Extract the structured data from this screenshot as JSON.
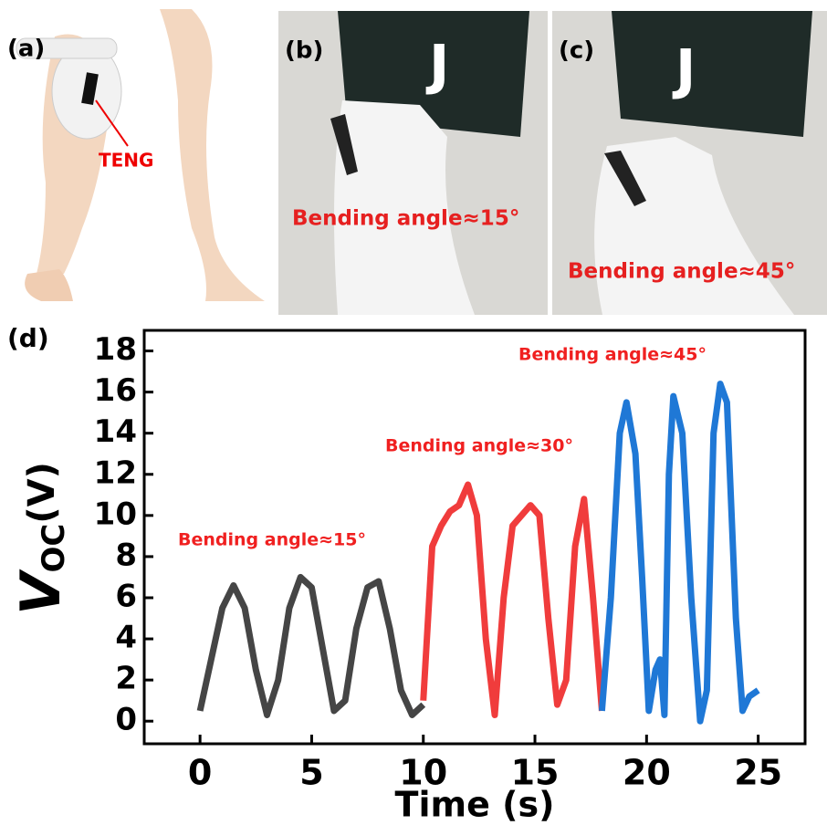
{
  "panels": {
    "a": {
      "label": "(a)",
      "teng": "TENG"
    },
    "b": {
      "label": "(b)",
      "caption": "Bending angle≈15°"
    },
    "c": {
      "label": "(c)",
      "caption": "Bending angle≈45°"
    }
  },
  "chart_data": {
    "type": "line",
    "panel_label": "(d)",
    "x_label": "Time (s)",
    "y_label": "V",
    "y_label_sub": "OC",
    "y_label_unit": "(V)",
    "xlim": [
      -2.5,
      27.1
    ],
    "ylim": [
      -1.1,
      19
    ],
    "xticks": [
      0,
      5,
      10,
      15,
      20,
      25
    ],
    "yticks": [
      0,
      2,
      4,
      6,
      8,
      10,
      12,
      14,
      16,
      18
    ],
    "annotations": [
      "Bending angle≈15°",
      "Bending angle≈30°",
      "Bending angle≈45°"
    ],
    "series": [
      {
        "color": "#454545",
        "x": [
          0,
          0.5,
          1,
          1.5,
          2,
          2.5,
          3,
          3.5,
          4,
          4.5,
          5,
          5.5,
          6,
          6.5,
          7,
          7.5,
          8,
          8.5,
          9,
          9.5,
          10
        ],
        "values": [
          0.5,
          3.0,
          5.5,
          6.6,
          5.5,
          2.5,
          0.3,
          2.0,
          5.5,
          7.0,
          6.5,
          3.5,
          0.5,
          1.0,
          4.5,
          6.5,
          6.8,
          4.5,
          1.5,
          0.3,
          0.8
        ]
      },
      {
        "color": "#f03c3c",
        "x": [
          10,
          10.4,
          10.8,
          11.2,
          11.6,
          12,
          12.4,
          12.8,
          13.2,
          13.6,
          14,
          14.4,
          14.8,
          15.2,
          15.6,
          16,
          16.4,
          16.8,
          17.2,
          17.6,
          18
        ],
        "values": [
          1,
          8.5,
          9.5,
          10.2,
          10.5,
          11.5,
          10,
          4,
          0.3,
          6,
          9.5,
          10,
          10.5,
          10,
          5,
          0.8,
          2,
          8.5,
          10.8,
          6,
          0.5
        ]
      },
      {
        "color": "#1f78d6",
        "x": [
          18,
          18.4,
          18.8,
          19.1,
          19.5,
          19.8,
          20.1,
          20.4,
          20.6,
          20.8,
          21,
          21.2,
          21.6,
          22,
          22.4,
          22.7,
          23,
          23.3,
          23.6,
          24,
          24.3,
          24.6,
          25
        ],
        "values": [
          0.5,
          6,
          14,
          15.5,
          13,
          7,
          0.5,
          2.5,
          3,
          0.3,
          12,
          15.8,
          14,
          6,
          0,
          1.5,
          14,
          16.4,
          15.5,
          5,
          0.5,
          1.2,
          1.5
        ]
      }
    ]
  }
}
